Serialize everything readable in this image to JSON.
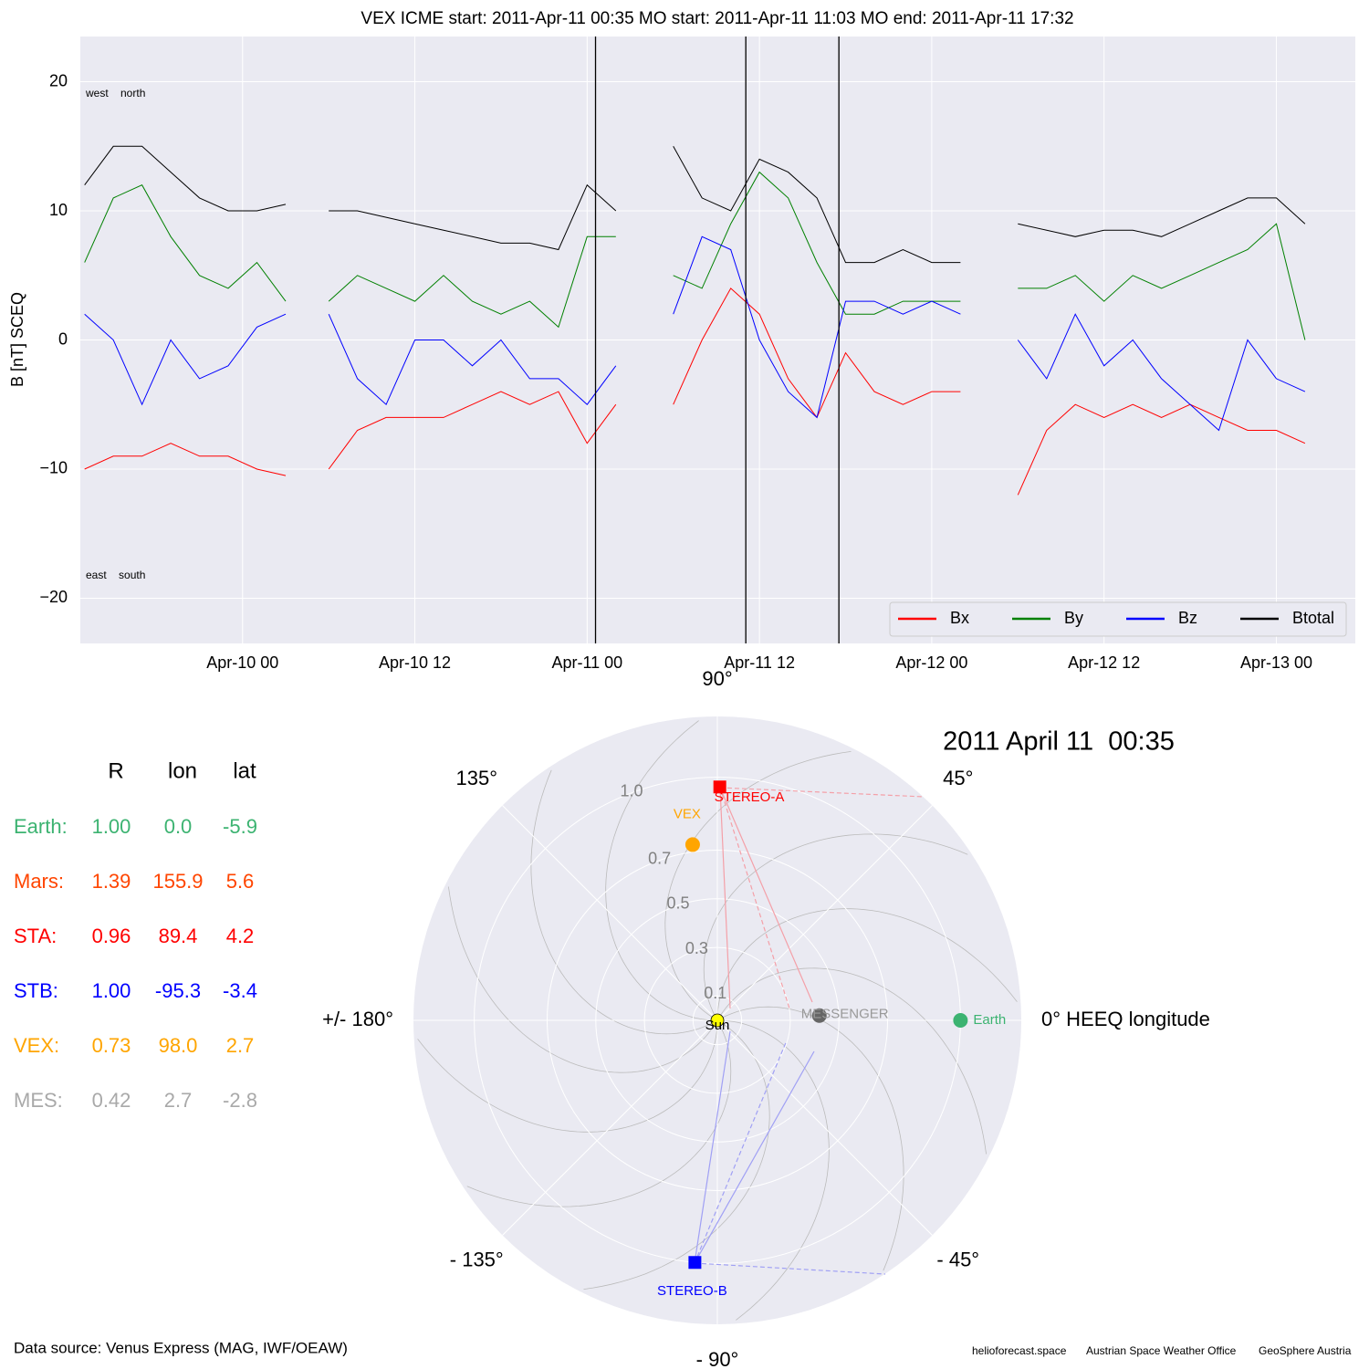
{
  "chart_data": [
    {
      "type": "line",
      "title": "VEX    ICME start: 2011-Apr-11 00:35   MO start: 2011-Apr-11 11:03   MO end: 2011-Apr-11 17:32",
      "ylabel": "B [nT] SCEQ",
      "annotations": [
        "west    north",
        "east    south"
      ],
      "x": [
        "2011-04-09T13:00",
        "2011-04-09T15:00",
        "2011-04-09T17:00",
        "2011-04-09T19:00",
        "2011-04-09T21:00",
        "2011-04-09T23:00",
        "2011-04-10T01:00",
        "2011-04-10T03:00",
        "2011-04-10T04:00",
        "2011-04-10T06:00",
        "2011-04-10T08:00",
        "2011-04-10T10:00",
        "2011-04-10T12:00",
        "2011-04-10T14:00",
        "2011-04-10T16:00",
        "2011-04-10T18:00",
        "2011-04-10T20:00",
        "2011-04-10T22:00",
        "2011-04-11T00:00",
        "2011-04-11T02:00",
        "2011-04-11T04:00",
        "2011-04-11T06:00",
        "2011-04-11T08:00",
        "2011-04-11T10:00",
        "2011-04-11T12:00",
        "2011-04-11T14:00",
        "2011-04-11T16:00",
        "2011-04-11T18:00",
        "2011-04-11T20:00",
        "2011-04-11T22:00",
        "2011-04-12T00:00",
        "2011-04-12T02:00",
        "2011-04-12T04:00",
        "2011-04-12T06:00",
        "2011-04-12T08:00",
        "2011-04-12T10:00",
        "2011-04-12T12:00",
        "2011-04-12T14:00",
        "2011-04-12T16:00",
        "2011-04-12T18:00",
        "2011-04-12T20:00",
        "2011-04-12T22:00",
        "2011-04-13T00:00",
        "2011-04-13T02:00"
      ],
      "series": [
        {
          "name": "Bx",
          "color": "#ff0000",
          "values": [
            -10,
            -9,
            -9,
            -8,
            -9,
            -9,
            -10,
            -10.5,
            null,
            -10,
            -7,
            -6,
            -6,
            -6,
            -5,
            -4,
            -5,
            -4,
            -8,
            -5,
            null,
            -5,
            0,
            4,
            2,
            -3,
            -6,
            -1,
            -4,
            -5,
            -4,
            -4,
            null,
            -12,
            -7,
            -5,
            -6,
            -5,
            -6,
            -5,
            -6,
            -7,
            -7,
            -8
          ]
        },
        {
          "name": "By",
          "color": "#008000",
          "values": [
            6,
            11,
            12,
            8,
            5,
            4,
            6,
            3,
            null,
            3,
            5,
            4,
            3,
            5,
            3,
            2,
            3,
            1,
            8,
            8,
            null,
            5,
            4,
            9,
            13,
            11,
            6,
            2,
            2,
            3,
            3,
            3,
            null,
            4,
            4,
            5,
            3,
            5,
            4,
            5,
            6,
            7,
            9,
            0
          ]
        },
        {
          "name": "Bz",
          "color": "#0000ff",
          "values": [
            2,
            0,
            -5,
            0,
            -3,
            -2,
            1,
            2,
            null,
            2,
            -3,
            -5,
            0,
            0,
            -2,
            0,
            -3,
            -3,
            -5,
            -2,
            null,
            2,
            8,
            7,
            0,
            -4,
            -6,
            3,
            3,
            2,
            3,
            2,
            null,
            0,
            -3,
            2,
            -2,
            0,
            -3,
            -5,
            -7,
            0,
            -3,
            -4
          ]
        },
        {
          "name": "Btotal",
          "color": "#000000",
          "values": [
            12,
            15,
            15,
            13,
            11,
            10,
            10,
            10.5,
            null,
            10,
            10,
            9.5,
            9,
            8.5,
            8,
            7.5,
            7.5,
            7,
            12,
            10,
            null,
            15,
            11,
            10,
            14,
            13,
            11,
            6,
            6,
            7,
            6,
            6,
            null,
            9,
            8.5,
            8,
            8.5,
            8.5,
            8,
            9,
            10,
            11,
            11,
            9
          ]
        }
      ],
      "vlines": [
        "2011-04-11T00:35",
        "2011-04-11T11:03",
        "2011-04-11T17:32"
      ],
      "xlim": [
        "2011-04-09T12:42",
        "2011-04-13T05:30"
      ],
      "xticks": [
        {
          "value": "2011-04-10T00:00",
          "label": "Apr-10 00"
        },
        {
          "value": "2011-04-10T12:00",
          "label": "Apr-10 12"
        },
        {
          "value": "2011-04-11T00:00",
          "label": "Apr-11 00"
        },
        {
          "value": "2011-04-11T12:00",
          "label": "Apr-11 12"
        },
        {
          "value": "2011-04-12T00:00",
          "label": "Apr-12 00"
        },
        {
          "value": "2011-04-12T12:00",
          "label": "Apr-12 12"
        },
        {
          "value": "2011-04-13T00:00",
          "label": "Apr-13 00"
        }
      ],
      "ylim": [
        -23.5,
        23.5
      ],
      "yticks": [
        {
          "value": -20,
          "label": "−20"
        },
        {
          "value": -10,
          "label": "−10"
        },
        0,
        10,
        20
      ],
      "grid": true,
      "legend": "lower right"
    },
    {
      "type": "polar",
      "title": "2011 April 11  00:35",
      "rlim": [
        0,
        1.25
      ],
      "rticks": [
        0.1,
        0.3,
        0.5,
        0.7,
        {
          "value": 1.0,
          "label": "1.0"
        }
      ],
      "thetaticks": [
        {
          "value": 0,
          "label": "0° HEEQ longitude"
        },
        {
          "value": 45,
          "label": "45°"
        },
        {
          "value": 90,
          "label": "90°"
        },
        {
          "value": 135,
          "label": "135°"
        },
        {
          "value": 180,
          "label": "+/- 180°"
        },
        {
          "value": -135,
          "label": "- 135°"
        },
        {
          "value": -90,
          "label": "- 90°"
        },
        {
          "value": -45,
          "label": "- 45°"
        }
      ],
      "bodies": [
        {
          "name": "Sun",
          "r": 0,
          "lon": 0,
          "color": "#ffff00",
          "marker": "circle"
        },
        {
          "name": "STEREO-A",
          "r": 0.96,
          "lon": 89.4,
          "color": "#ff0000",
          "marker": "square"
        },
        {
          "name": "VEX",
          "r": 0.73,
          "lon": 98.0,
          "color": "#ffa500",
          "marker": "circle"
        },
        {
          "name": "MESSENGER",
          "r": 0.42,
          "lon": 2.7,
          "color": "#666666",
          "marker": "circle"
        },
        {
          "name": "Earth",
          "r": 1.0,
          "lon": 0.0,
          "color": "#3cb371",
          "marker": "circle"
        },
        {
          "name": "STEREO-B",
          "r": 1.0,
          "lon": -95.3,
          "color": "#0000ff",
          "marker": "square"
        }
      ]
    }
  ],
  "table": {
    "header": [
      "R",
      "lon",
      "lat"
    ],
    "rows": [
      {
        "cells": [
          "Earth:",
          "1.00",
          "0.0",
          "-5.9"
        ],
        "color": "#3cb371"
      },
      {
        "cells": [
          "Mars:",
          "1.39",
          "155.9",
          "5.6"
        ],
        "color": "#ff4500"
      },
      {
        "cells": [
          "STA:",
          "0.96",
          "89.4",
          "4.2"
        ],
        "color": "#ff0000"
      },
      {
        "cells": [
          "STB:",
          "1.00",
          "-95.3",
          "-3.4"
        ],
        "color": "#0000ff"
      },
      {
        "cells": [
          "VEX:",
          "0.73",
          "98.0",
          "2.7"
        ],
        "color": "#ffa500"
      },
      {
        "cells": [
          "MES:",
          "0.42",
          "2.7",
          "-2.8"
        ],
        "color": "#a9a9a9"
      }
    ]
  },
  "footer": {
    "source": "Data source: Venus Express (MAG, IWF/OEAW)",
    "credits": [
      "helioforecast.space",
      "Austrian Space Weather Office",
      "GeoSphere Austria"
    ]
  }
}
